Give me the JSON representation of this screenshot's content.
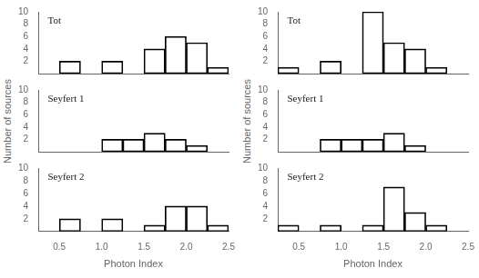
{
  "chart_data": [
    {
      "type": "histogram",
      "title": "Tot",
      "bins": [
        0.25,
        0.5,
        0.75,
        1.0,
        1.25,
        1.5,
        1.75,
        2.0,
        2.25,
        2.5
      ],
      "values": [
        0,
        2,
        0,
        2,
        0,
        4,
        6,
        5,
        1
      ],
      "color": "black",
      "xlim": [
        0.25,
        2.5
      ],
      "ylim": [
        0,
        10
      ],
      "yticks": [
        2,
        4,
        6,
        8,
        10
      ],
      "xticks": [
        0.5,
        {
          "value": 1,
          "label": "1.0"
        },
        1.5,
        {
          "value": 2,
          "label": "2.0"
        },
        2.5
      ],
      "grid": false,
      "tick_labels": "y"
    },
    {
      "type": "histogram",
      "title": "Seyfert 1",
      "ylabel": "Number of sources",
      "bins": [
        0.25,
        0.5,
        0.75,
        1.0,
        1.25,
        1.5,
        1.75,
        2.0,
        2.25,
        2.5
      ],
      "values": [
        0,
        0,
        0,
        2,
        2,
        3,
        2,
        1,
        0
      ],
      "color": "black",
      "xlim": [
        0.25,
        2.5
      ],
      "ylim": [
        0,
        10
      ],
      "yticks": [
        2,
        4,
        6,
        8,
        10
      ],
      "xticks": [
        0.5,
        {
          "value": 1,
          "label": "1.0"
        },
        1.5,
        {
          "value": 2,
          "label": "2.0"
        },
        2.5
      ],
      "grid": false,
      "tick_labels": "y"
    },
    {
      "type": "histogram",
      "title": "Seyfert 2",
      "xlabel": "Photon Index",
      "bins": [
        0.25,
        0.5,
        0.75,
        1.0,
        1.25,
        1.5,
        1.75,
        2.0,
        2.25,
        2.5
      ],
      "values": [
        0,
        2,
        0,
        2,
        0,
        1,
        4,
        4,
        1
      ],
      "color": "black",
      "xlim": [
        0.25,
        2.5
      ],
      "ylim": [
        0,
        10
      ],
      "yticks": [
        2,
        4,
        6,
        8,
        10
      ],
      "xticks": [
        0.5,
        {
          "value": 1,
          "label": "1.0"
        },
        1.5,
        {
          "value": 2,
          "label": "2.0"
        },
        2.5
      ],
      "grid": false
    },
    {
      "type": "histogram",
      "title": "Tot",
      "bins": [
        0.25,
        0.5,
        0.75,
        1.0,
        1.25,
        1.5,
        1.75,
        2.0,
        2.25,
        2.5
      ],
      "values": [
        1,
        0,
        2,
        0,
        10,
        5,
        4,
        1,
        0
      ],
      "color": "black",
      "xlim": [
        0.25,
        2.5
      ],
      "ylim": [
        0,
        10
      ],
      "yticks": [
        2,
        4,
        6,
        8,
        10
      ],
      "xticks": [
        0.5,
        {
          "value": 1,
          "label": "1.0"
        },
        1.5,
        {
          "value": 2,
          "label": "2.0"
        },
        2.5
      ],
      "grid": false,
      "tick_labels": "y"
    },
    {
      "type": "histogram",
      "title": "Seyfert 1",
      "ylabel": "Number of sources",
      "bins": [
        0.25,
        0.5,
        0.75,
        1.0,
        1.25,
        1.5,
        1.75,
        2.0,
        2.25,
        2.5
      ],
      "values": [
        0,
        0,
        2,
        2,
        2,
        3,
        1,
        0,
        0
      ],
      "color": "black",
      "xlim": [
        0.25,
        2.5
      ],
      "ylim": [
        0,
        10
      ],
      "yticks": [
        2,
        4,
        6,
        8,
        10
      ],
      "xticks": [
        0.5,
        {
          "value": 1,
          "label": "1.0"
        },
        1.5,
        {
          "value": 2,
          "label": "2.0"
        },
        2.5
      ],
      "grid": false,
      "tick_labels": "y"
    },
    {
      "type": "histogram",
      "title": "Seyfert 2",
      "xlabel": "Photon Index",
      "bins": [
        0.25,
        0.5,
        0.75,
        1.0,
        1.25,
        1.5,
        1.75,
        2.0,
        2.25,
        2.5
      ],
      "values": [
        1,
        0,
        1,
        0,
        1,
        7,
        3,
        1,
        0
      ],
      "color": "black",
      "xlim": [
        0.25,
        2.5
      ],
      "ylim": [
        0,
        10
      ],
      "yticks": [
        2,
        4,
        6,
        8,
        10
      ],
      "xticks": [
        0.5,
        {
          "value": 1,
          "label": "1.0"
        },
        1.5,
        {
          "value": 2,
          "label": "2.0"
        },
        2.5
      ],
      "grid": false
    }
  ]
}
